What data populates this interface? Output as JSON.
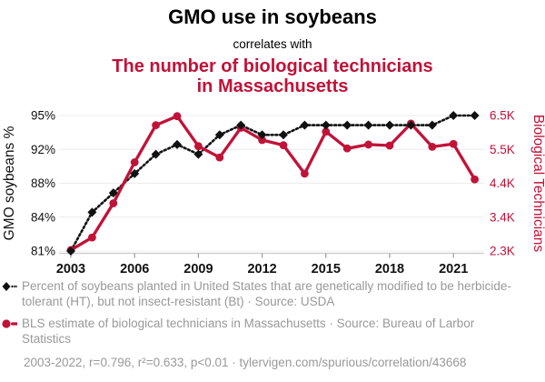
{
  "header": {
    "title": "GMO use in soybeans",
    "connector": "correlates with",
    "subtitle_line1": "The number of biological technicians",
    "subtitle_line2": "in Massachusetts"
  },
  "chart_data": {
    "type": "line",
    "x": [
      2003,
      2004,
      2005,
      2006,
      2007,
      2008,
      2009,
      2010,
      2011,
      2012,
      2013,
      2014,
      2015,
      2016,
      2017,
      2018,
      2019,
      2020,
      2021,
      2022
    ],
    "x_ticks": [
      2003,
      2006,
      2009,
      2012,
      2015,
      2018,
      2021
    ],
    "left_axis": {
      "label": "GMO soybeans %",
      "ticks": [
        "95%",
        "92%",
        "88%",
        "84%",
        "81%"
      ],
      "range": [
        81,
        95
      ],
      "color": "#111111"
    },
    "right_axis": {
      "label": "Biological Technicians",
      "ticks": [
        "6.5K",
        "5.5K",
        "4.4K",
        "3.4K",
        "2.3K"
      ],
      "range": [
        2.3,
        6.5
      ],
      "color": "#c11238"
    },
    "series": [
      {
        "name": "GMO soybeans %",
        "axis": "left",
        "color": "#111111",
        "marker": "diamond",
        "line": "dotted",
        "values": [
          81,
          85,
          87,
          89,
          91,
          92,
          91,
          93,
          94,
          93,
          93,
          94,
          94,
          94,
          94,
          94,
          94,
          94,
          95,
          95
        ]
      },
      {
        "name": "Biological Technicians",
        "axis": "right",
        "color": "#c11238",
        "marker": "circle",
        "line": "solid",
        "values": [
          2.33,
          2.72,
          3.78,
          5.05,
          6.2,
          6.48,
          5.55,
          5.2,
          6.12,
          5.74,
          5.58,
          4.7,
          6.0,
          5.48,
          5.6,
          5.57,
          6.25,
          5.53,
          5.62,
          4.52
        ]
      }
    ],
    "grid": true,
    "legend_position": "below"
  },
  "legend": {
    "items": [
      {
        "label": "Percent of soybeans planted in United States that are genetically modified to be herbicide-tolerant (HT), but not insect-resistant (Bt) · Source: USDA"
      },
      {
        "label": "BLS estimate of biological technicians in Massachusetts · Source: Bureau of Larbor Statistics"
      }
    ]
  },
  "footer": {
    "citation": "2003-2022, r=0.796, r²=0.633, p<0.01 · tylervigen.com/spurious/correlation/43668"
  },
  "colors": {
    "accent_red": "#c11238",
    "series_black": "#111111",
    "muted_text": "#999999",
    "gridline": "#ececec",
    "axis_line": "#c9c9c9",
    "tick_mark": "#999999"
  }
}
